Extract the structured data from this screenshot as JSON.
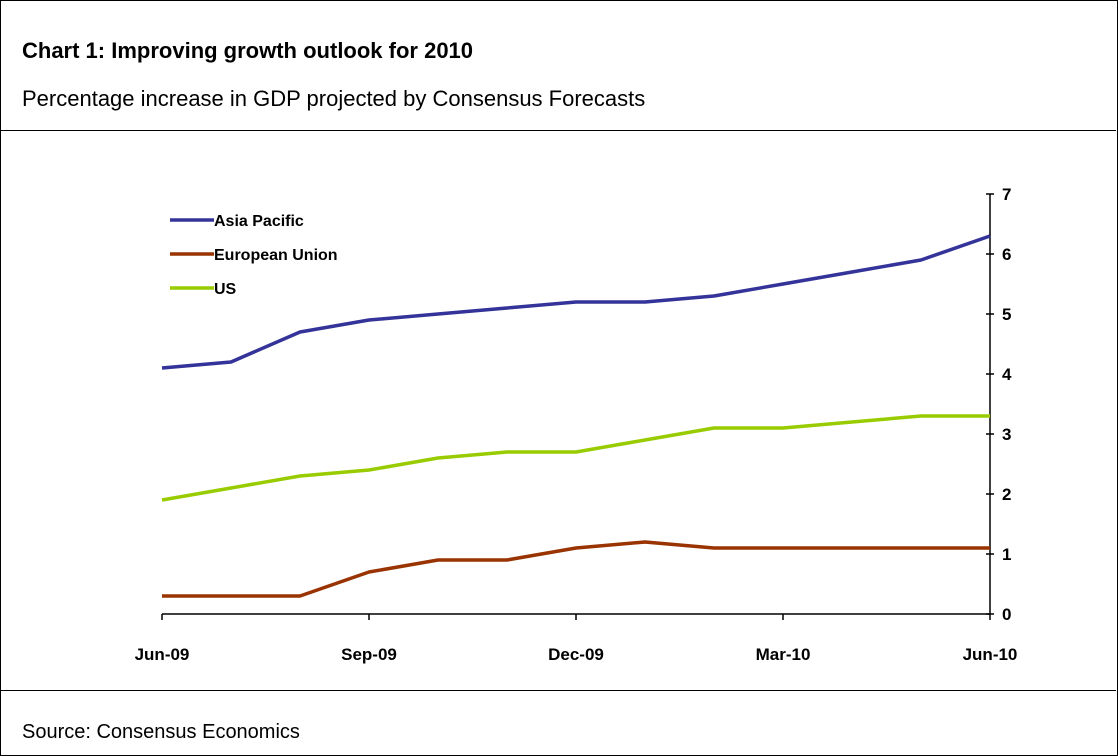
{
  "header": {
    "title": "Chart 1: Improving growth outlook for 2010",
    "subtitle": "Percentage increase in GDP projected by Consensus Forecasts"
  },
  "footer": {
    "source": "Source: Consensus Economics"
  },
  "chart_data": {
    "type": "line",
    "title": "Chart 1: Improving growth outlook for 2010",
    "subtitle": "Percentage increase in GDP projected by Consensus Forecasts",
    "x": [
      "Jun-09",
      "Jul-09",
      "Aug-09",
      "Sep-09",
      "Oct-09",
      "Nov-09",
      "Dec-09",
      "Jan-10",
      "Feb-10",
      "Mar-10",
      "Apr-10",
      "May-10",
      "Jun-10"
    ],
    "x_tick_labels": [
      "Jun-09",
      "Sep-09",
      "Dec-09",
      "Mar-10",
      "Jun-10"
    ],
    "ylim": [
      0,
      7
    ],
    "y_ticks": [
      0,
      1,
      2,
      3,
      4,
      5,
      6,
      7
    ],
    "y_axis_side": "right",
    "legend_position": "top-left",
    "grid": false,
    "series": [
      {
        "name": "Asia Pacific",
        "color": "#333399",
        "values": [
          4.1,
          4.2,
          4.7,
          4.9,
          5.0,
          5.1,
          5.2,
          5.2,
          5.3,
          5.5,
          5.7,
          5.9,
          6.3
        ]
      },
      {
        "name": "European Union",
        "color": "#993300",
        "values": [
          0.3,
          0.3,
          0.3,
          0.7,
          0.9,
          0.9,
          1.1,
          1.2,
          1.1,
          1.1,
          1.1,
          1.1,
          1.1
        ]
      },
      {
        "name": "US",
        "color": "#99CC00",
        "values": [
          1.9,
          2.1,
          2.3,
          2.4,
          2.6,
          2.7,
          2.7,
          2.9,
          3.1,
          3.1,
          3.2,
          3.3,
          3.3
        ]
      }
    ]
  }
}
